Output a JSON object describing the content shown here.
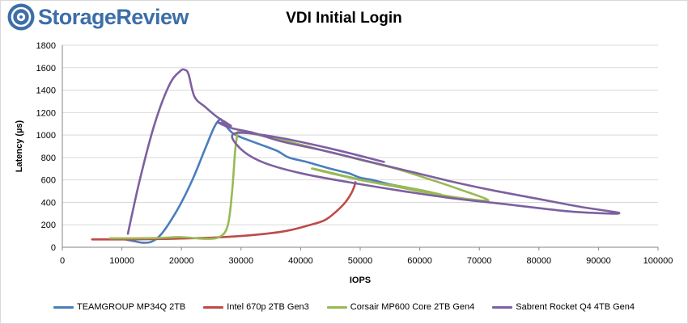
{
  "brand": {
    "name": "StorageReview"
  },
  "chart_data": {
    "type": "line",
    "title": "VDI Initial Login",
    "xlabel": "IOPS",
    "ylabel": "Latency (µs)",
    "xlim": [
      0,
      100000
    ],
    "ylim": [
      0,
      1800
    ],
    "xticks": [
      0,
      10000,
      20000,
      30000,
      40000,
      50000,
      60000,
      70000,
      80000,
      90000,
      100000
    ],
    "yticks": [
      0,
      200,
      400,
      600,
      800,
      1000,
      1200,
      1400,
      1600,
      1800
    ],
    "grid": "horizontal",
    "legend_position": "bottom",
    "series": [
      {
        "name": "TEAMGROUP MP34Q 2TB",
        "color": "#4a7ebb",
        "x": [
          10000,
          12000,
          13500,
          15000,
          16500,
          18000,
          20000,
          22000,
          24000,
          25500,
          26500,
          27000,
          28500,
          30000,
          33000,
          36000,
          38000,
          41000,
          45000,
          48000,
          50000,
          52000,
          55000,
          58000,
          61000,
          62500
        ],
        "y": [
          75,
          55,
          40,
          50,
          110,
          220,
          400,
          620,
          880,
          1070,
          1140,
          1110,
          1020,
          980,
          920,
          860,
          800,
          760,
          700,
          660,
          620,
          600,
          560,
          530,
          500,
          480
        ]
      },
      {
        "name": "Intel 670p 2TB Gen3",
        "color": "#be4b48",
        "x": [
          5000,
          10000,
          15000,
          20000,
          25000,
          30000,
          35000,
          38000,
          41000,
          44000,
          46000,
          47500,
          48500,
          49000,
          49200
        ],
        "y": [
          70,
          70,
          72,
          78,
          85,
          100,
          125,
          150,
          190,
          240,
          320,
          400,
          480,
          540,
          580
        ]
      },
      {
        "name": "Corsair MP600 Core 2TB Gen4",
        "color": "#98b954",
        "x": [
          8000,
          12000,
          16000,
          20000,
          24000,
          26500,
          27800,
          28500,
          29000,
          29300,
          29600,
          32000,
          38000,
          44000,
          50000,
          56000,
          62000,
          67000,
          71500,
          68000,
          62000,
          56000,
          50000,
          45000,
          42000,
          43000,
          47000,
          52000,
          57000,
          61000,
          63500
        ],
        "y": [
          80,
          80,
          82,
          90,
          75,
          95,
          200,
          500,
          850,
          980,
          1030,
          1010,
          940,
          860,
          780,
          700,
          600,
          510,
          420,
          430,
          480,
          540,
          600,
          660,
          700,
          690,
          640,
          580,
          540,
          500,
          470
        ]
      },
      {
        "name": "Sabrent Rocket Q4 4TB Gen4",
        "color": "#7d60a0",
        "x": [
          11000,
          13000,
          15500,
          18000,
          19800,
          20600,
          21200,
          22200,
          24000,
          26000,
          27500,
          28300,
          27000,
          26200,
          28500,
          32000,
          37000,
          44000,
          51000,
          58000,
          65000,
          72000,
          80000,
          87000,
          92000,
          93500,
          92000,
          85000,
          75000,
          65000,
          56000,
          48000,
          40000,
          34000,
          30500,
          28500,
          30000,
          36000,
          45000,
          54000
        ],
        "y": [
          120,
          600,
          1100,
          1450,
          1570,
          1580,
          1540,
          1340,
          1250,
          1160,
          1110,
          1080,
          1100,
          1110,
          1060,
          1020,
          940,
          860,
          770,
          680,
          590,
          510,
          430,
          360,
          320,
          305,
          300,
          320,
          380,
          440,
          510,
          580,
          660,
          750,
          850,
          980,
          1020,
          980,
          880,
          760
        ]
      }
    ]
  }
}
